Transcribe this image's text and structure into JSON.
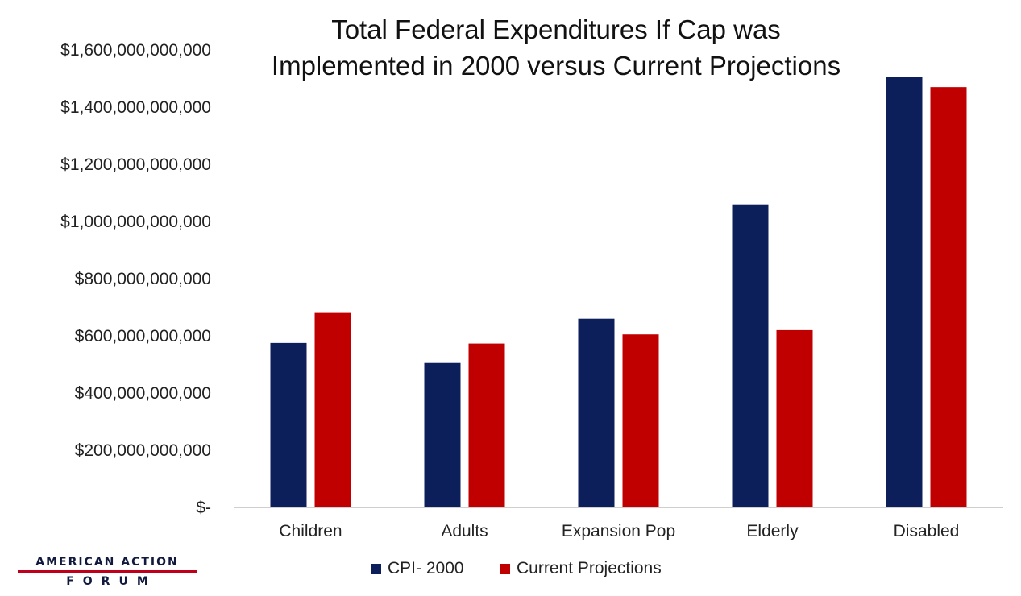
{
  "colors": {
    "cpi": "#0c1f5b",
    "current": "#c00000",
    "axis": "#bfbfbf",
    "text": "#222222"
  },
  "logo": {
    "line1": "AMERICAN ACTION",
    "line2": "FORUM"
  },
  "chart_data": {
    "type": "bar",
    "title_lines": [
      "Total Federal Expenditures If Cap was",
      "Implemented in 2000 versus Current Projections"
    ],
    "categories": [
      "Children",
      "Adults",
      "Expansion Pop",
      "Elderly",
      "Disabled"
    ],
    "series": [
      {
        "name": "CPI- 2000",
        "values": [
          575000000000,
          505000000000,
          660000000000,
          1060000000000,
          1505000000000
        ]
      },
      {
        "name": "Current Projections",
        "values": [
          680000000000,
          573000000000,
          605000000000,
          620000000000,
          1470000000000
        ]
      }
    ],
    "ylim": [
      0,
      1600000000000
    ],
    "yticks": [
      0,
      200000000000,
      400000000000,
      600000000000,
      800000000000,
      1000000000000,
      1200000000000,
      1400000000000,
      1600000000000
    ],
    "ytick_labels": [
      "$-",
      "$200,000,000,000",
      "$400,000,000,000",
      "$600,000,000,000",
      "$800,000,000,000",
      "$1,000,000,000,000",
      "$1,200,000,000,000",
      "$1,400,000,000,000",
      "$1,600,000,000,000"
    ],
    "grid": false,
    "legend_position": "bottom"
  }
}
